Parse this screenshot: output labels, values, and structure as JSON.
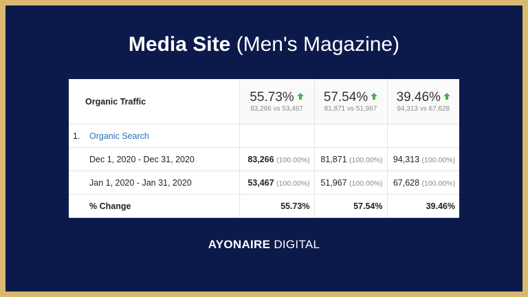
{
  "title": {
    "bold": "Media Site",
    "rest": "(Men's Magazine)"
  },
  "table": {
    "header": {
      "label": "Organic Traffic",
      "columns": [
        {
          "change": "55.73%",
          "compare": "83,266 vs 53,467"
        },
        {
          "change": "57.54%",
          "compare": "81,871 vs 51,967"
        },
        {
          "change": "39.46%",
          "compare": "94,313 vs 67,628"
        }
      ]
    },
    "group": {
      "index": "1.",
      "label": "Organic Search"
    },
    "rows": [
      {
        "label": "Dec 1, 2020 - Dec 31, 2020",
        "cells": [
          {
            "value": "83,266",
            "share": "(100.00%)"
          },
          {
            "value": "81,871",
            "share": "(100.00%)"
          },
          {
            "value": "94,313",
            "share": "(100.00%)"
          }
        ]
      },
      {
        "label": "Jan 1, 2020 - Jan 31, 2020",
        "cells": [
          {
            "value": "53,467",
            "share": "(100.00%)"
          },
          {
            "value": "51,967",
            "share": "(100.00%)"
          },
          {
            "value": "67,628",
            "share": "(100.00%)"
          }
        ]
      }
    ],
    "change_row": {
      "label": "% Change",
      "values": [
        "55.73%",
        "57.54%",
        "39.46%"
      ]
    }
  },
  "footer": {
    "bold": "AYONAIRE",
    "rest": "DIGITAL"
  }
}
